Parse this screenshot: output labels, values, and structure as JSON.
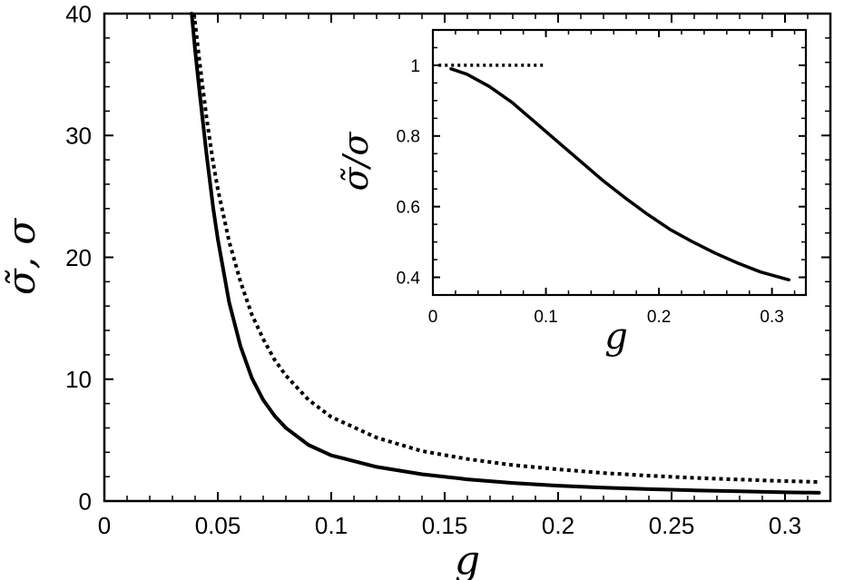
{
  "chart_data": [
    {
      "type": "line",
      "title": "",
      "xlabel": "g",
      "ylabel": "σ̃, σ",
      "xlim": [
        0,
        0.32
      ],
      "ylim": [
        0,
        40
      ],
      "xticks": [
        0,
        0.05,
        0.1,
        0.15,
        0.2,
        0.25,
        0.3
      ],
      "xtick_labels": [
        "0",
        "0.05",
        "0.1",
        "0.15",
        "0.2",
        "0.25",
        "0.3"
      ],
      "yticks": [
        0,
        10,
        20,
        30,
        40
      ],
      "ytick_labels": [
        "0",
        "10",
        "20",
        "30",
        "40"
      ],
      "grid": false,
      "legend": "none",
      "series": [
        {
          "style": "solid",
          "color": "#000000",
          "x": [
            0.0385,
            0.04,
            0.042,
            0.045,
            0.048,
            0.05,
            0.055,
            0.06,
            0.065,
            0.07,
            0.075,
            0.08,
            0.09,
            0.1,
            0.12,
            0.14,
            0.16,
            0.18,
            0.2,
            0.22,
            0.24,
            0.26,
            0.28,
            0.3,
            0.315
          ],
          "y": [
            40,
            37.0,
            33.5,
            28.5,
            24.0,
            21.5,
            16.3,
            12.7,
            10.1,
            8.3,
            7.0,
            6.0,
            4.6,
            3.75,
            2.8,
            2.2,
            1.78,
            1.48,
            1.26,
            1.1,
            0.98,
            0.88,
            0.8,
            0.72,
            0.68
          ]
        },
        {
          "style": "dotted",
          "color": "#000000",
          "x": [
            0.0395,
            0.042,
            0.045,
            0.048,
            0.05,
            0.055,
            0.06,
            0.065,
            0.07,
            0.075,
            0.08,
            0.09,
            0.1,
            0.12,
            0.14,
            0.16,
            0.18,
            0.2,
            0.22,
            0.24,
            0.26,
            0.28,
            0.3,
            0.315
          ],
          "y": [
            40,
            36.0,
            31.5,
            27.7,
            25.6,
            21.3,
            18.0,
            15.3,
            13.3,
            11.6,
            10.3,
            8.3,
            6.9,
            5.2,
            4.1,
            3.45,
            2.95,
            2.6,
            2.3,
            2.08,
            1.9,
            1.76,
            1.64,
            1.56
          ]
        }
      ]
    },
    {
      "type": "line",
      "title": "",
      "xlabel": "g",
      "ylabel": "σ̃/σ",
      "xlim": [
        0,
        0.33
      ],
      "ylim": [
        0.35,
        1.1
      ],
      "xticks": [
        0,
        0.1,
        0.2,
        0.3
      ],
      "xtick_labels": [
        "0",
        "0.1",
        "0.2",
        "0.3"
      ],
      "yticks": [
        0.4,
        0.6,
        0.8,
        1.0
      ],
      "ytick_labels": [
        "0.4",
        "0.6",
        "0.8",
        "1"
      ],
      "grid": false,
      "legend": "none",
      "series": [
        {
          "style": "solid",
          "color": "#000000",
          "x": [
            0.016,
            0.03,
            0.05,
            0.07,
            0.09,
            0.11,
            0.13,
            0.15,
            0.17,
            0.19,
            0.21,
            0.23,
            0.25,
            0.27,
            0.29,
            0.315
          ],
          "y": [
            0.99,
            0.975,
            0.94,
            0.895,
            0.84,
            0.785,
            0.73,
            0.675,
            0.625,
            0.578,
            0.535,
            0.5,
            0.468,
            0.44,
            0.415,
            0.393
          ]
        },
        {
          "style": "dotted",
          "color": "#000000",
          "x": [
            0.005,
            0.1
          ],
          "y": [
            1.0,
            1.0
          ]
        }
      ]
    }
  ]
}
